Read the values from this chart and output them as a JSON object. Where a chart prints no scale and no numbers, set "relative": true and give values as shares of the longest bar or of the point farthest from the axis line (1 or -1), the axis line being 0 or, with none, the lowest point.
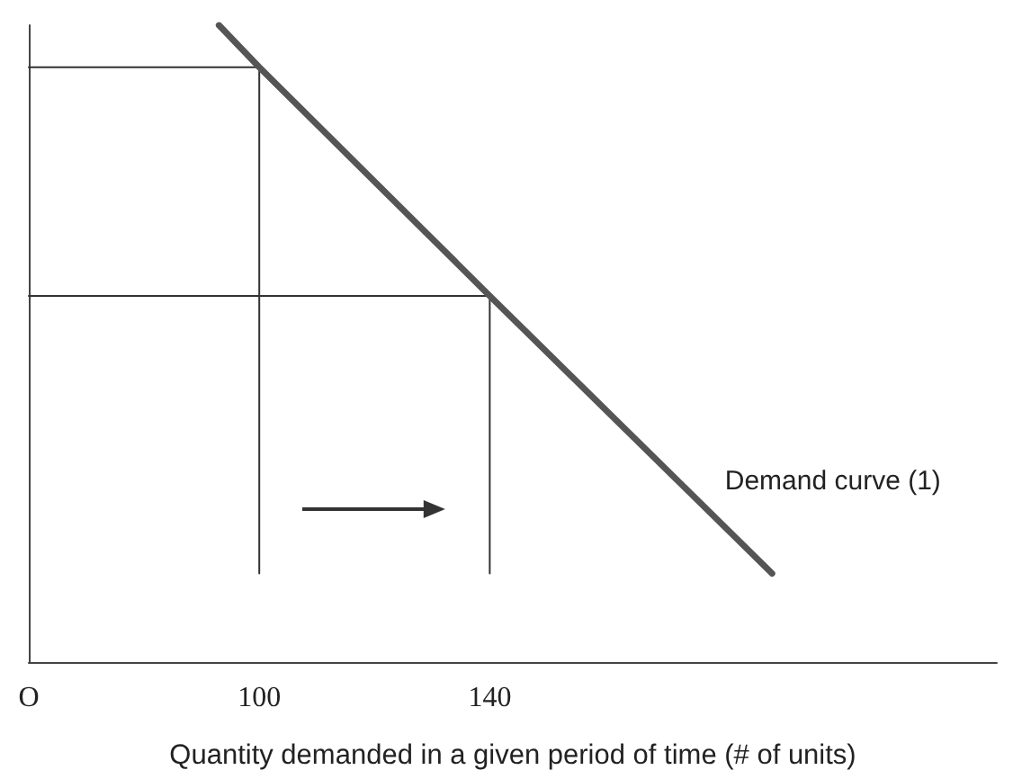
{
  "chart_data": {
    "type": "line",
    "relative": true,
    "xlabel": "Quantity demanded in a given period of time (# of units)",
    "xlim": [
      60,
      228
    ],
    "xticks": [
      {
        "value": 60,
        "label": "O"
      },
      100,
      140
    ],
    "tick_labels": "x",
    "grid": false,
    "legend": false,
    "marker": "none",
    "line_style": "solid",
    "series": [
      {
        "name": "Demand curve (1)",
        "color": "#555555",
        "x": [
          93,
          100,
          140,
          189
        ],
        "values": [
          1,
          0.934,
          0.575,
          0.139
        ]
      },
      {
        "color": "#333333",
        "x": [
          60,
          100
        ],
        "values": [
          0.934,
          0.934
        ]
      },
      {
        "color": "#333333",
        "x": [
          60,
          140
        ],
        "values": [
          0.575,
          0.575
        ]
      },
      {
        "color": "#333333",
        "x": [
          100,
          100
        ],
        "values": [
          0.139,
          0.934
        ]
      },
      {
        "color": "#333333",
        "x": [
          140,
          140
        ],
        "values": [
          0.139,
          0.575
        ]
      }
    ]
  }
}
